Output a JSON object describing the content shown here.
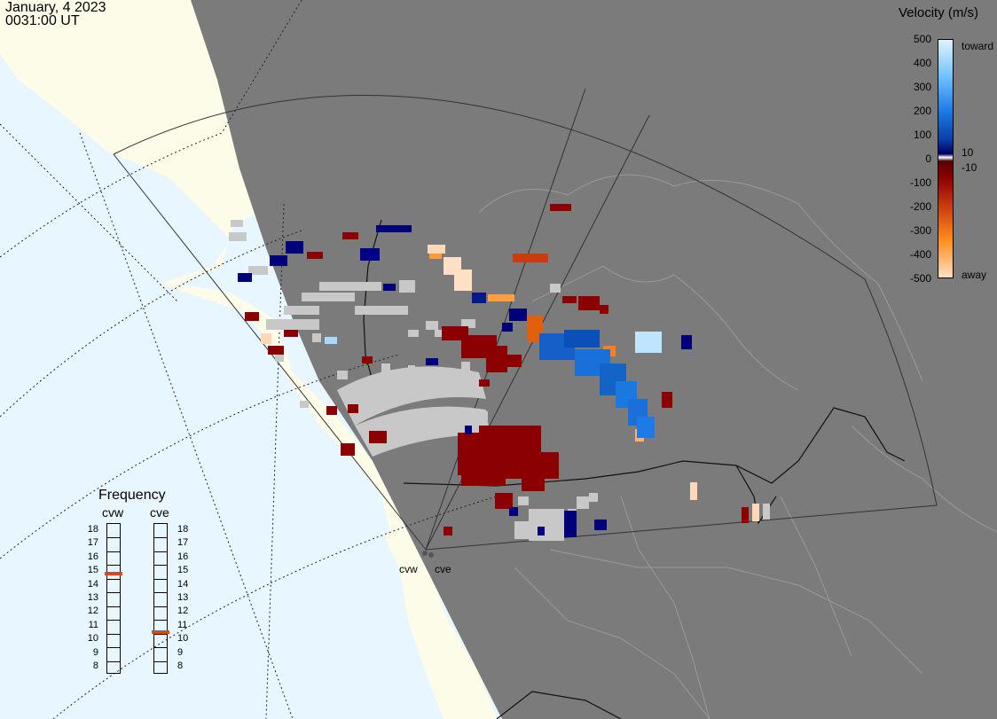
{
  "header": {
    "date": "January, 4 2023",
    "time": "0031:00 UT"
  },
  "colors": {
    "ocean": "#e8f6ff",
    "land": "#fcfce8",
    "night": "#7b7b7b",
    "ground_scatter": "#c8c8c8",
    "marker": "#d84a1b"
  },
  "sites": [
    {
      "label": "cvw"
    },
    {
      "label": "cve"
    }
  ],
  "frequency": {
    "title": "Frequency",
    "radars": [
      {
        "name": "cvw",
        "value_mhz": 14.9
      },
      {
        "name": "cve",
        "value_mhz": 10.6
      }
    ],
    "scale": [
      "18",
      "17",
      "16",
      "15",
      "14",
      "13",
      "12",
      "11",
      "10",
      "9",
      "8"
    ]
  },
  "velocity_scale": {
    "title": "Velocity (m/s)",
    "labels": [
      "500",
      "400",
      "300",
      "200",
      "100",
      "0",
      "-100",
      "-200",
      "-300",
      "-400",
      "-500"
    ],
    "extra_labels": {
      "plus": "10",
      "minus": "-10"
    },
    "toward": "toward",
    "away": "away"
  }
}
